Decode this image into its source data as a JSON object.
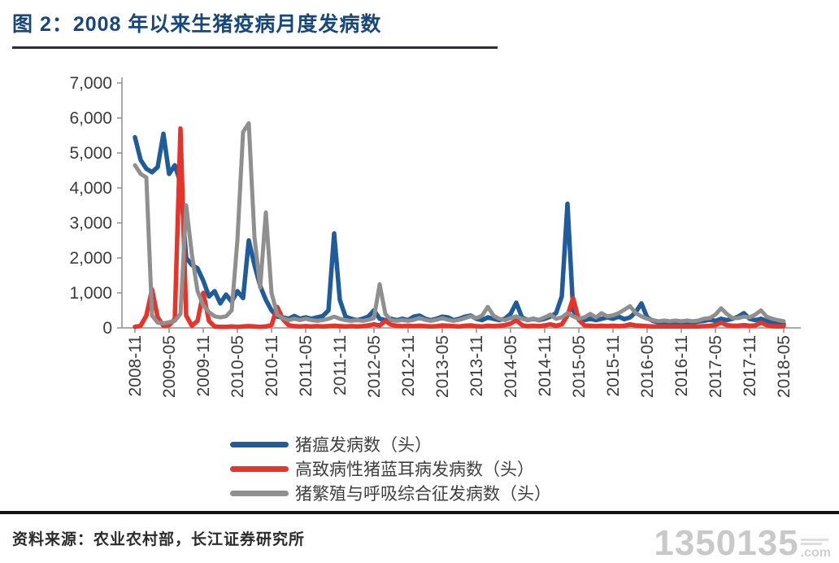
{
  "header": {
    "title": "图 2：2008 年以来生猪疫病月度发病数"
  },
  "footer": {
    "source_label": "资料来源：农业农村部，长江证券研究所"
  },
  "watermark": {
    "text": "1350135",
    "suffix": ".com"
  },
  "colors": {
    "title_blue": "#17477F",
    "series_blue": "#1F5C99",
    "series_red": "#E8332A",
    "series_gray": "#8F8F8F",
    "axis_line": "#8f8f8f",
    "tick_text": "#3b3b3b"
  },
  "chart_data": {
    "type": "line",
    "title": "2008 年以来生猪疫病月度发病数",
    "x_start": "2008-11",
    "x_end": "2018-05",
    "x_monthly_points": 115,
    "x_tick_every_months": 6,
    "x_tick_labels": [
      "2008-11",
      "2009-05",
      "2009-11",
      "2010-05",
      "2010-11",
      "2011-05",
      "2011-11",
      "2012-05",
      "2012-11",
      "2013-05",
      "2013-11",
      "2014-05",
      "2014-11",
      "2015-05",
      "2015-11",
      "2016-05",
      "2016-11",
      "2017-05",
      "2017-11",
      "2018-05"
    ],
    "ylim": [
      0,
      7000
    ],
    "y_tick_labels": [
      "7,000",
      "6,000",
      "5,000",
      "4,000",
      "3,000",
      "2,000",
      "1,000",
      "0"
    ],
    "grid": false,
    "legend_position": "bottom",
    "series": [
      {
        "name": "猪瘟发病数（头）",
        "color": "#1F5C99",
        "values": [
          5450,
          4800,
          4550,
          4450,
          4600,
          5550,
          4400,
          4650,
          4150,
          2000,
          1800,
          1700,
          1350,
          900,
          1050,
          700,
          950,
          750,
          1050,
          850,
          2500,
          1800,
          1200,
          800,
          500,
          320,
          300,
          260,
          340,
          260,
          300,
          260,
          300,
          340,
          500,
          2700,
          800,
          320,
          260,
          220,
          260,
          320,
          500,
          260,
          220,
          260,
          220,
          260,
          220,
          320,
          350,
          260,
          220,
          260,
          320,
          300,
          220,
          260,
          320,
          350,
          260,
          220,
          300,
          260,
          220,
          260,
          400,
          720,
          300,
          220,
          260,
          220,
          260,
          320,
          420,
          900,
          3550,
          500,
          260,
          220,
          260,
          220,
          260,
          300,
          260,
          320,
          250,
          300,
          450,
          700,
          300,
          200,
          160,
          160,
          160,
          160,
          160,
          160,
          160,
          180,
          200,
          240,
          200,
          260,
          220,
          260,
          320,
          420,
          260,
          220,
          260,
          200,
          160,
          130,
          110
        ]
      },
      {
        "name": "高致病性猪蓝耳病发病数（头）",
        "color": "#E8332A",
        "values": [
          30,
          60,
          350,
          1100,
          300,
          60,
          80,
          250,
          5700,
          350,
          60,
          200,
          1000,
          200,
          40,
          30,
          30,
          40,
          30,
          40,
          50,
          40,
          30,
          40,
          80,
          600,
          250,
          80,
          50,
          40,
          50,
          40,
          50,
          40,
          50,
          60,
          50,
          40,
          50,
          40,
          50,
          70,
          100,
          70,
          200,
          90,
          60,
          50,
          60,
          50,
          60,
          50,
          40,
          50,
          70,
          60,
          50,
          40,
          60,
          70,
          50,
          40,
          60,
          50,
          60,
          80,
          120,
          220,
          80,
          50,
          60,
          50,
          70,
          100,
          60,
          100,
          350,
          850,
          220,
          70,
          60,
          50,
          60,
          50,
          60,
          50,
          60,
          100,
          70,
          60,
          50,
          40,
          40,
          40,
          40,
          40,
          40,
          40,
          40,
          40,
          50,
          60,
          80,
          150,
          80,
          60,
          60,
          80,
          60,
          70,
          150,
          80,
          50,
          40,
          50
        ]
      },
      {
        "name": "猪繁殖与呼吸综合征发病数（头）",
        "color": "#8F8F8F",
        "values": [
          4650,
          4400,
          4300,
          350,
          150,
          130,
          160,
          200,
          400,
          3500,
          2100,
          1050,
          650,
          450,
          330,
          300,
          330,
          500,
          2500,
          5600,
          5850,
          2600,
          1150,
          3300,
          1000,
          380,
          280,
          220,
          260,
          220,
          260,
          220,
          200,
          220,
          260,
          320,
          260,
          220,
          200,
          220,
          200,
          230,
          280,
          1250,
          400,
          220,
          200,
          220,
          200,
          230,
          280,
          230,
          200,
          230,
          280,
          230,
          200,
          230,
          280,
          330,
          280,
          350,
          600,
          350,
          260,
          220,
          280,
          330,
          260,
          220,
          260,
          230,
          300,
          380,
          260,
          300,
          420,
          330,
          260,
          300,
          400,
          300,
          420,
          330,
          360,
          420,
          520,
          620,
          420,
          330,
          260,
          220,
          190,
          210,
          190,
          210,
          190,
          210,
          190,
          210,
          260,
          280,
          380,
          560,
          400,
          280,
          280,
          320,
          300,
          380,
          500,
          320,
          260,
          220,
          190
        ]
      }
    ]
  }
}
